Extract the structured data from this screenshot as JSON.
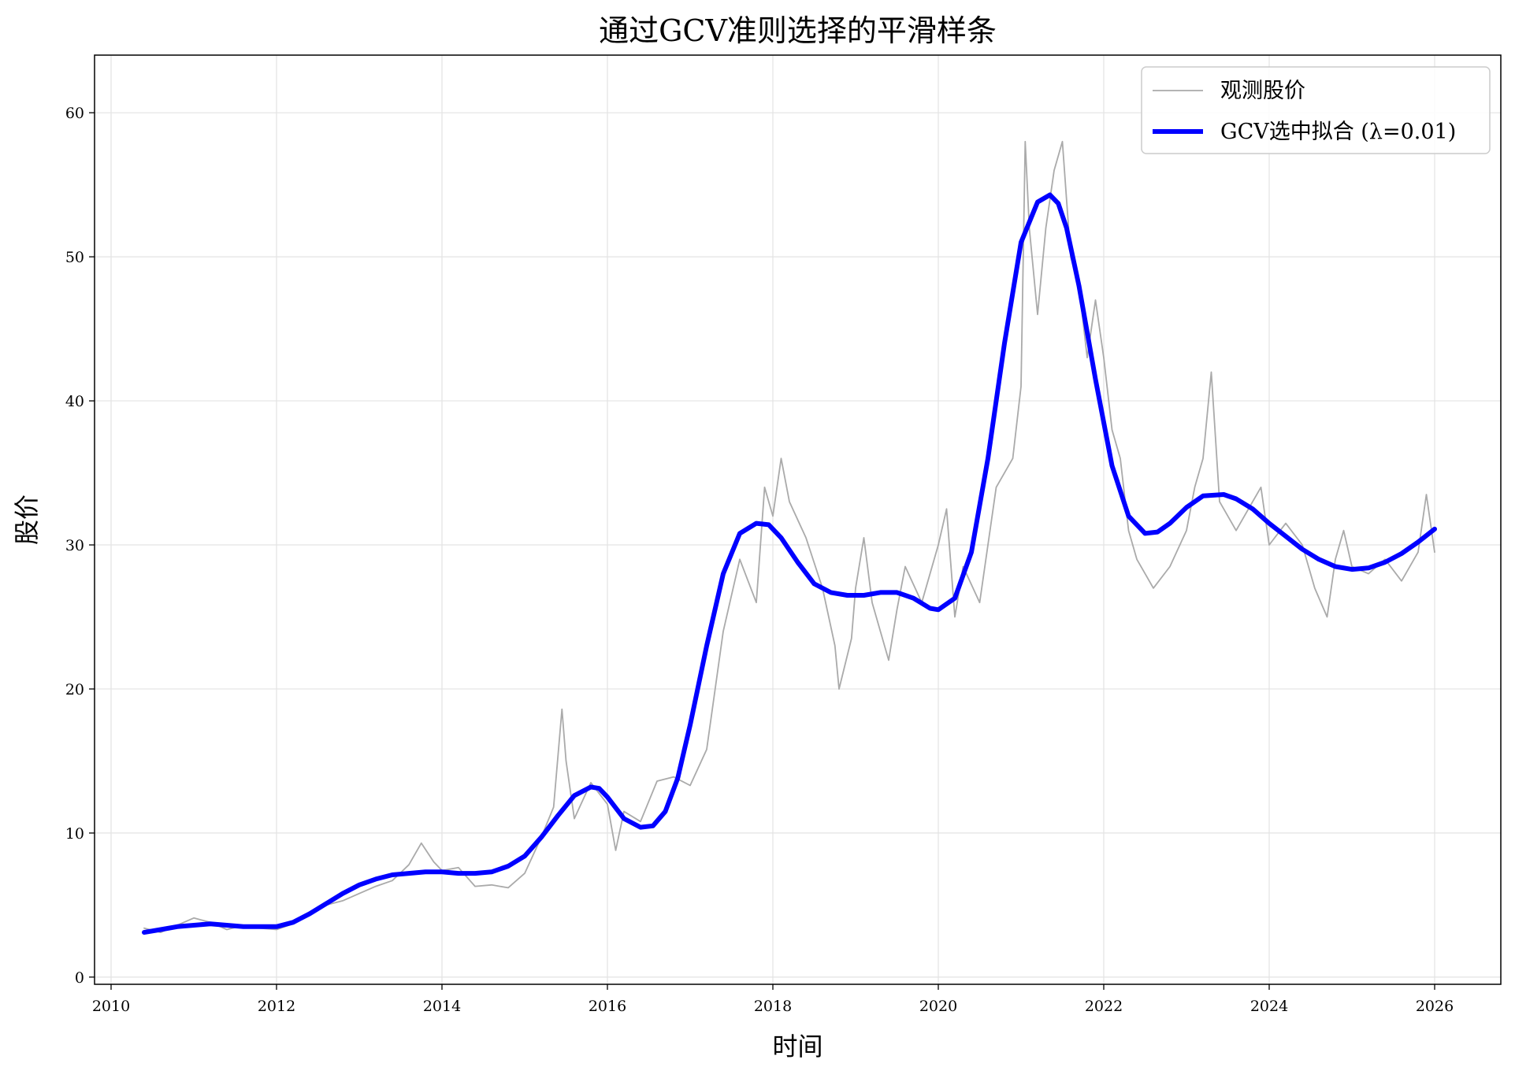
{
  "chart_data": {
    "type": "line",
    "title": "通过GCV准则选择的平滑样条",
    "xlabel": "时间",
    "ylabel": "股价",
    "xlim": [
      2009.8,
      2026.8
    ],
    "ylim": [
      -0.5,
      64
    ],
    "x_ticks": [
      2010,
      2012,
      2014,
      2016,
      2018,
      2020,
      2022,
      2024,
      2026
    ],
    "x_tick_labels": [
      "2010",
      "2012",
      "2014",
      "2016",
      "2018",
      "2020",
      "2022",
      "2024",
      "2026"
    ],
    "y_ticks": [
      0,
      10,
      20,
      30,
      40,
      50,
      60
    ],
    "y_tick_labels": [
      "0",
      "10",
      "20",
      "30",
      "40",
      "50",
      "60"
    ],
    "grid": true,
    "legend_position": "top-right",
    "series": [
      {
        "name": "观测股价",
        "color": "#aaaaaa",
        "style": "thin",
        "x": [
          2010.4,
          2010.6,
          2010.8,
          2011.0,
          2011.2,
          2011.4,
          2011.6,
          2011.8,
          2012.0,
          2012.2,
          2012.4,
          2012.6,
          2012.8,
          2013.0,
          2013.2,
          2013.4,
          2013.6,
          2013.75,
          2013.9,
          2014.0,
          2014.2,
          2014.4,
          2014.6,
          2014.8,
          2015.0,
          2015.2,
          2015.35,
          2015.45,
          2015.5,
          2015.6,
          2015.8,
          2016.0,
          2016.1,
          2016.2,
          2016.4,
          2016.6,
          2016.8,
          2017.0,
          2017.2,
          2017.4,
          2017.6,
          2017.8,
          2017.9,
          2018.0,
          2018.1,
          2018.2,
          2018.4,
          2018.6,
          2018.75,
          2018.8,
          2018.95,
          2019.0,
          2019.1,
          2019.2,
          2019.4,
          2019.5,
          2019.6,
          2019.8,
          2020.0,
          2020.1,
          2020.2,
          2020.3,
          2020.5,
          2020.7,
          2020.9,
          2021.0,
          2021.05,
          2021.1,
          2021.2,
          2021.3,
          2021.4,
          2021.5,
          2021.6,
          2021.7,
          2021.8,
          2021.9,
          2022.0,
          2022.1,
          2022.2,
          2022.3,
          2022.4,
          2022.5,
          2022.6,
          2022.8,
          2023.0,
          2023.1,
          2023.2,
          2023.3,
          2023.4,
          2023.6,
          2023.8,
          2023.9,
          2024.0,
          2024.2,
          2024.4,
          2024.55,
          2024.7,
          2024.8,
          2024.9,
          2025.0,
          2025.2,
          2025.4,
          2025.6,
          2025.8,
          2025.9,
          2026.0
        ],
        "y": [
          3.4,
          3.1,
          3.6,
          4.1,
          3.8,
          3.3,
          3.6,
          3.4,
          3.3,
          3.7,
          4.5,
          5.0,
          5.3,
          5.8,
          6.3,
          6.7,
          7.8,
          9.3,
          8.0,
          7.4,
          7.6,
          6.3,
          6.4,
          6.2,
          7.2,
          9.7,
          11.8,
          18.6,
          15.0,
          11.0,
          13.5,
          12.0,
          8.8,
          11.5,
          10.8,
          13.6,
          13.9,
          13.3,
          15.8,
          24.0,
          29.0,
          26.0,
          34.0,
          32.0,
          36.0,
          33.0,
          30.5,
          27.0,
          23.0,
          20.0,
          23.5,
          27.0,
          30.5,
          26.0,
          22.0,
          25.5,
          28.5,
          26.0,
          30.0,
          32.5,
          25.0,
          28.5,
          26.0,
          34.0,
          36.0,
          41.0,
          58.0,
          52.0,
          46.0,
          52.0,
          56.0,
          58.0,
          50.0,
          48.0,
          43.0,
          47.0,
          43.0,
          38.0,
          36.0,
          31.0,
          29.0,
          28.0,
          27.0,
          28.5,
          31.0,
          34.0,
          36.0,
          42.0,
          33.0,
          31.0,
          33.0,
          34.0,
          30.0,
          31.5,
          30.0,
          27.0,
          25.0,
          29.0,
          31.0,
          28.5,
          28.0,
          29.0,
          27.5,
          29.5,
          33.5,
          29.5
        ]
      },
      {
        "name": "GCV选中拟合 (λ=0.01)",
        "color": "#0000ff",
        "style": "thick",
        "x": [
          2010.4,
          2010.6,
          2010.8,
          2011.0,
          2011.2,
          2011.4,
          2011.6,
          2011.8,
          2012.0,
          2012.2,
          2012.4,
          2012.6,
          2012.8,
          2013.0,
          2013.2,
          2013.4,
          2013.6,
          2013.8,
          2014.0,
          2014.2,
          2014.4,
          2014.6,
          2014.8,
          2015.0,
          2015.2,
          2015.4,
          2015.6,
          2015.8,
          2015.9,
          2016.0,
          2016.2,
          2016.4,
          2016.55,
          2016.7,
          2016.85,
          2017.0,
          2017.2,
          2017.4,
          2017.6,
          2017.8,
          2017.95,
          2018.1,
          2018.3,
          2018.5,
          2018.7,
          2018.9,
          2019.1,
          2019.3,
          2019.5,
          2019.7,
          2019.9,
          2020.0,
          2020.2,
          2020.4,
          2020.6,
          2020.8,
          2021.0,
          2021.2,
          2021.35,
          2021.45,
          2021.55,
          2021.7,
          2021.9,
          2022.1,
          2022.3,
          2022.5,
          2022.65,
          2022.8,
          2023.0,
          2023.2,
          2023.45,
          2023.6,
          2023.8,
          2024.0,
          2024.2,
          2024.4,
          2024.6,
          2024.8,
          2025.0,
          2025.2,
          2025.4,
          2025.6,
          2025.8,
          2026.0
        ],
        "y": [
          3.1,
          3.3,
          3.5,
          3.6,
          3.7,
          3.6,
          3.5,
          3.5,
          3.5,
          3.8,
          4.4,
          5.1,
          5.8,
          6.4,
          6.8,
          7.1,
          7.2,
          7.3,
          7.3,
          7.2,
          7.2,
          7.3,
          7.7,
          8.4,
          9.7,
          11.2,
          12.6,
          13.2,
          13.1,
          12.5,
          11.0,
          10.4,
          10.5,
          11.5,
          13.8,
          17.5,
          23.0,
          28.0,
          30.8,
          31.5,
          31.4,
          30.5,
          28.8,
          27.3,
          26.7,
          26.5,
          26.5,
          26.7,
          26.7,
          26.3,
          25.6,
          25.5,
          26.3,
          29.5,
          36.0,
          44.0,
          51.0,
          53.8,
          54.3,
          53.7,
          52.0,
          48.0,
          41.5,
          35.5,
          32.0,
          30.8,
          30.9,
          31.5,
          32.6,
          33.4,
          33.5,
          33.2,
          32.5,
          31.5,
          30.6,
          29.7,
          29.0,
          28.5,
          28.3,
          28.4,
          28.8,
          29.4,
          30.2,
          31.1
        ]
      }
    ]
  }
}
